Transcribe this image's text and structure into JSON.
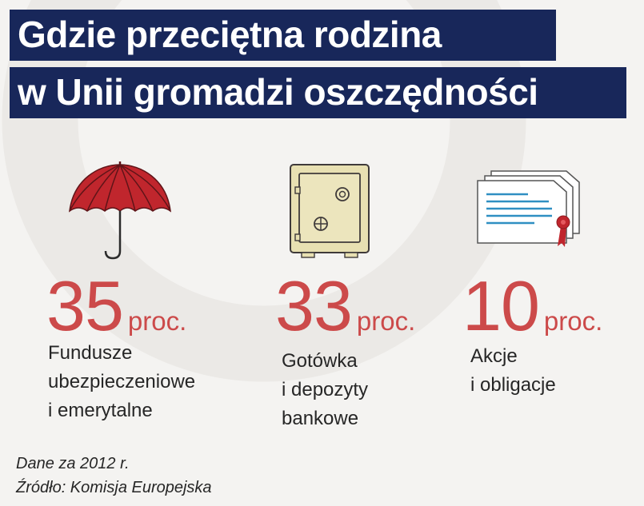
{
  "title": {
    "line1": "Gdzie przeciętna rodzina",
    "line2": "w Unii gromadzi oszczędności"
  },
  "chart_data": {
    "type": "table",
    "unit": "proc.",
    "items": [
      {
        "value": 35,
        "value_label": "35",
        "unit": "proc.",
        "label_lines": [
          "Fundusze",
          "ubezpieczeniowe",
          "i emerytalne"
        ],
        "icon": "umbrella-icon"
      },
      {
        "value": 33,
        "value_label": "33",
        "unit": "proc.",
        "label_lines": [
          "Gotówka",
          "i depozyty",
          "bankowe"
        ],
        "icon": "safe-icon"
      },
      {
        "value": 10,
        "value_label": "10",
        "unit": "proc.",
        "label_lines": [
          "Akcje",
          "i obligacje"
        ],
        "icon": "certificate-icon"
      }
    ]
  },
  "footnotes": {
    "data_year": "Dane za 2012 r.",
    "source": "Źródło: Komisja Europejska"
  },
  "colors": {
    "title_bg": "#18275a",
    "accent_red": "#cc4a4a",
    "safe_fill": "#e8e0b2",
    "safe_stroke": "#3f3a3a",
    "document_blue": "#2f8fc2"
  }
}
